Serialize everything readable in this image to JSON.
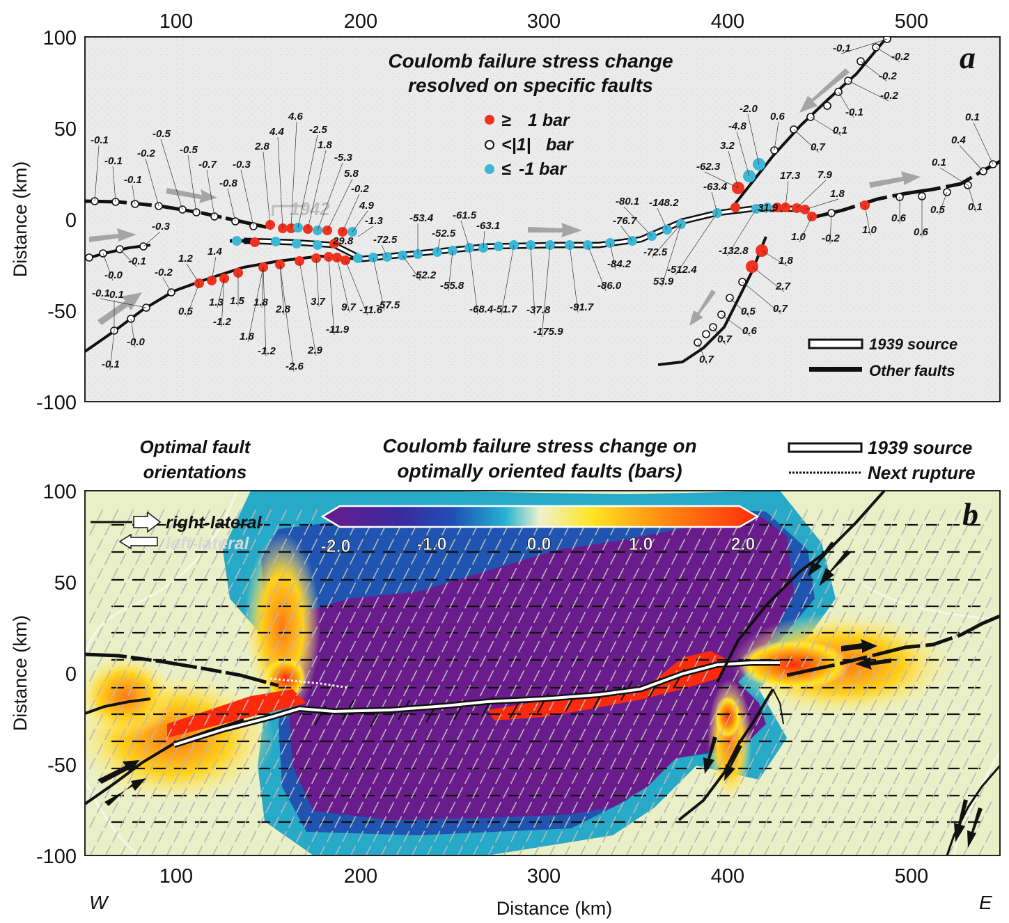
{
  "panel_a": {
    "letter": "a",
    "title_line1": "Coulomb failure stress change",
    "title_line2": "resolved on specific faults",
    "legend": [
      {
        "symbol": "≥",
        "label": "1 bar",
        "color": "#f0321e"
      },
      {
        "symbol": "<|1|",
        "label": "bar",
        "color": "#ffffff"
      },
      {
        "symbol": "≤",
        "label": "-1 bar",
        "color": "#3cb7d6"
      }
    ],
    "line_legend": [
      "1939 source",
      "Other faults"
    ],
    "faded_label": "1942",
    "point_labels": [
      "-0.1",
      "-0.1",
      "-0.1",
      "-0.2",
      "-0.5",
      "-0.5",
      "-0.7",
      "-0.8",
      "-0.3",
      "2.8",
      "4.4",
      "4.6",
      "-2.5",
      "1.8",
      "-5.3",
      "5.8",
      "-0.2",
      "4.9",
      "-1.3",
      "-53.4",
      "-61.5",
      "-52.5",
      "-63.1",
      "-72.5",
      "29.8",
      "-0.3",
      "-0.1",
      "-0.0",
      "-0.2",
      "1.2",
      "1.4",
      "-0.1",
      "0.5",
      "1.3",
      "-1.2",
      "1.5",
      "1.8",
      "-1.2",
      "1.8",
      "2.8",
      "2.9",
      "-2.6",
      "3.7",
      "-11.9",
      "9.7",
      "-11.6",
      "-57.5",
      "-52.2",
      "-55.8",
      "-68.4",
      "-51.7",
      "-37.8",
      "-175.9",
      "-91.7",
      "-86.0",
      "-84.2",
      "-76.7",
      "-80.1",
      "-148.2",
      "-72.5",
      "-63.4",
      "53.9",
      "-512.4",
      "-62.3",
      "-132.8",
      "3.2",
      "-4.8",
      "-2.0",
      "0.6",
      "0.7",
      "0.1",
      "-0.1",
      "-0.2",
      "-0.2",
      "-0.2",
      "-0.1",
      "31.9",
      "17.3",
      "7.9",
      "1.8",
      "1.0",
      "-0.2",
      "1.0",
      "0.6",
      "0.6",
      "0.5",
      "0.1",
      "0.4",
      "0.1",
      "0.1",
      "1.8",
      "2.7",
      "0.7",
      "0.5",
      "0.6",
      "0.7",
      "0.7",
      "-0.0",
      "-0.1",
      "-0.1"
    ]
  },
  "panel_b": {
    "letter": "b",
    "title_line1": "Coulomb failure stress change on",
    "title_line2": "optimally oriented faults (bars)",
    "left_heading_line1": "Optimal fault",
    "left_heading_line2": "orientations",
    "legend_right": [
      "1939 source",
      "Next rupture"
    ],
    "orient_legend": [
      "right-lateral",
      "left-lateral"
    ],
    "colorbar": {
      "ticks": [
        "-2.0",
        "-1.0",
        "0.0",
        "1.0",
        "2.0"
      ],
      "colors": [
        "#6b1c8c",
        "#1f3da8",
        "#1fa7c9",
        "#eef2c8",
        "#ffe21c",
        "#ff8a10",
        "#ff2a0c"
      ]
    }
  },
  "axes": {
    "x_ticks": [
      "100",
      "200",
      "300",
      "400",
      "500"
    ],
    "y_ticks": [
      "100",
      "50",
      "0",
      "-50",
      "-100"
    ],
    "x_label": "Distance (km)",
    "y_label": "Distance (km)",
    "west": "W",
    "east": "E"
  }
}
